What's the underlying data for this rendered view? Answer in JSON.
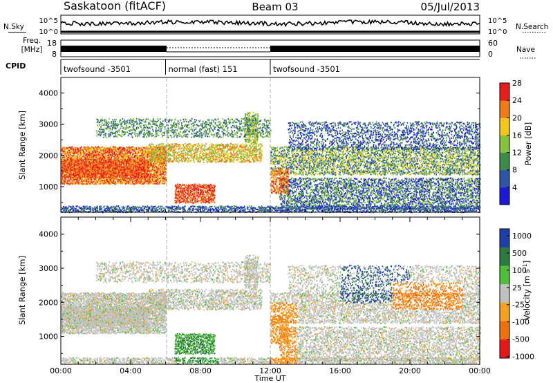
{
  "header": {
    "title": "Saskatoon (fitACF)",
    "beam": "Beam 03",
    "date": "05/Jul/2013"
  },
  "strip_labels": {
    "nsky": "N.Sky",
    "nsky_ticks": [
      "10^5",
      "10^0"
    ],
    "nsearch": "N.Search",
    "nsearch_ticks": [
      "10^5",
      "10^0"
    ],
    "freq_label_1": "Freq.",
    "freq_label_2": "[MHz]",
    "freq_ticks": [
      "18",
      "8"
    ],
    "nave": "Nave",
    "nave_ticks": [
      "60",
      "0"
    ],
    "cpid": "CPID"
  },
  "cpid_segments": [
    {
      "label": "twofsound -3501",
      "start_hour": 0,
      "end_hour": 6
    },
    {
      "label": "normal (fast) 151",
      "start_hour": 6,
      "end_hour": 12
    },
    {
      "label": "twofsound -3501",
      "start_hour": 12,
      "end_hour": 24
    }
  ],
  "chart_data": [
    {
      "type": "heatmap",
      "ylabel": "Slant Range [km]",
      "ylim": [
        180,
        4500
      ],
      "yticks": [
        1000,
        2000,
        3000,
        4000
      ],
      "colorbar": {
        "label": "Power [dB]",
        "ticks": [
          4,
          8,
          12,
          16,
          20,
          24,
          28
        ],
        "colors": [
          "#1a1ad8",
          "#2e55a8",
          "#3f8a4a",
          "#84c23a",
          "#f2c61a",
          "#f07a1a",
          "#e81c1c"
        ]
      }
    },
    {
      "type": "heatmap",
      "ylabel": "Slant Range [km]",
      "ylim": [
        180,
        4500
      ],
      "yticks": [
        1000,
        2000,
        3000,
        4000
      ],
      "xlabel": "Time UT",
      "xticks": [
        "00:00",
        "04:00",
        "08:00",
        "12:00",
        "16:00",
        "20:00",
        "00:00"
      ],
      "xlim": [
        0,
        24
      ],
      "colorbar": {
        "label": "Velocity [m s",
        "label_exp": "-1",
        "label_end": "]",
        "ticks": [
          "1000",
          "500",
          "100",
          "25",
          "-25",
          "-100",
          "-500",
          "-1000"
        ],
        "colors": [
          "#1f3fa8",
          "#2e7a40",
          "#4fbf3a",
          "#c0c0c0",
          "#f5a020",
          "#f07010",
          "#e81818"
        ]
      }
    }
  ]
}
